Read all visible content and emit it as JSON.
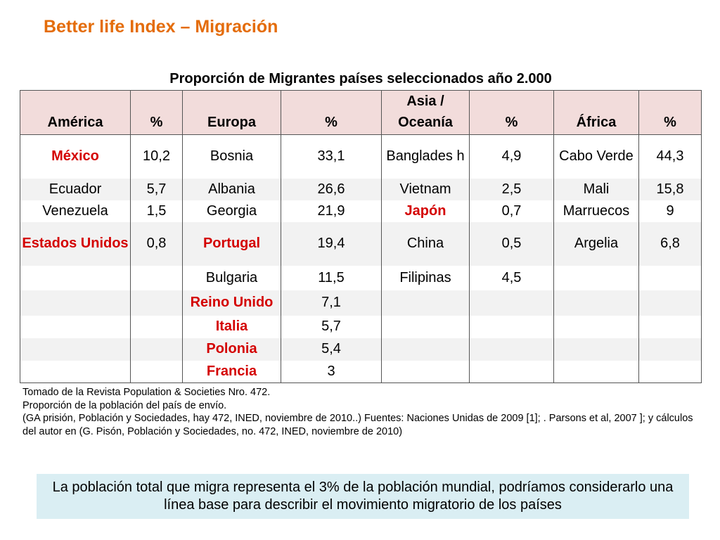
{
  "title": "Better life Index – Migración",
  "table_caption": "Proporción de Migrantes países seleccionados año 2.000",
  "colors": {
    "title": "#e46c0a",
    "header_bg": "#f2dcdb",
    "highlight_text": "#d40000",
    "stripe_bg": "#f2f2f2",
    "summary_bg": "#daeef3"
  },
  "table": {
    "headers": [
      "América",
      "%",
      "Europa",
      "%",
      "Asia / Oceanía",
      "%",
      "África",
      "%"
    ],
    "rows": [
      [
        "México",
        "10,2",
        "Bosnia",
        "33,1",
        "Banglades h",
        "4,9",
        "Cabo Verde",
        "44,3"
      ],
      [
        "Ecuador",
        "5,7",
        "Albania",
        "26,6",
        "Vietnam",
        "2,5",
        "Mali",
        "15,8"
      ],
      [
        "Venezuela",
        "1,5",
        "Georgia",
        "21,9",
        "Japón",
        "0,7",
        "Marruecos",
        "9"
      ],
      [
        "Estados Unidos",
        "0,8",
        "Portugal",
        "19,4",
        "China",
        "0,5",
        "Argelia",
        "6,8"
      ],
      [
        "",
        "",
        "Bulgaria",
        "11,5",
        "Filipinas",
        "4,5",
        "",
        ""
      ],
      [
        "",
        "",
        "Reino Unido",
        "7,1",
        "",
        "",
        "",
        ""
      ],
      [
        "",
        "",
        "Italia",
        "5,7",
        "",
        "",
        "",
        ""
      ],
      [
        "",
        "",
        "Polonia",
        "5,4",
        "",
        "",
        "",
        ""
      ],
      [
        "",
        "",
        "Francia",
        "3",
        "",
        "",
        "",
        ""
      ]
    ],
    "highlighted_countries": [
      "México",
      "Estados Unidos",
      "Portugal",
      "Japón",
      "Reino Unido",
      "Italia",
      "Polonia",
      "Francia"
    ]
  },
  "source_notes": [
    "Tomado de la Revista Population & Societies Nro. 472.",
    "Proporción de la población del país de envío.",
    "(GA prisión, Población y Sociedades, hay 472, INED, noviembre de 2010..) Fuentes: Naciones Unidas de 2009 [1]; . Parsons et al, 2007 ]; y cálculos del autor en (G. Pisón, Población y Sociedades, no. 472, INED, noviembre de 2010)"
  ],
  "summary": "La población total que migra representa el 3% de la población mundial, podríamos considerarlo una línea base para describir el movimiento migratorio de los países"
}
